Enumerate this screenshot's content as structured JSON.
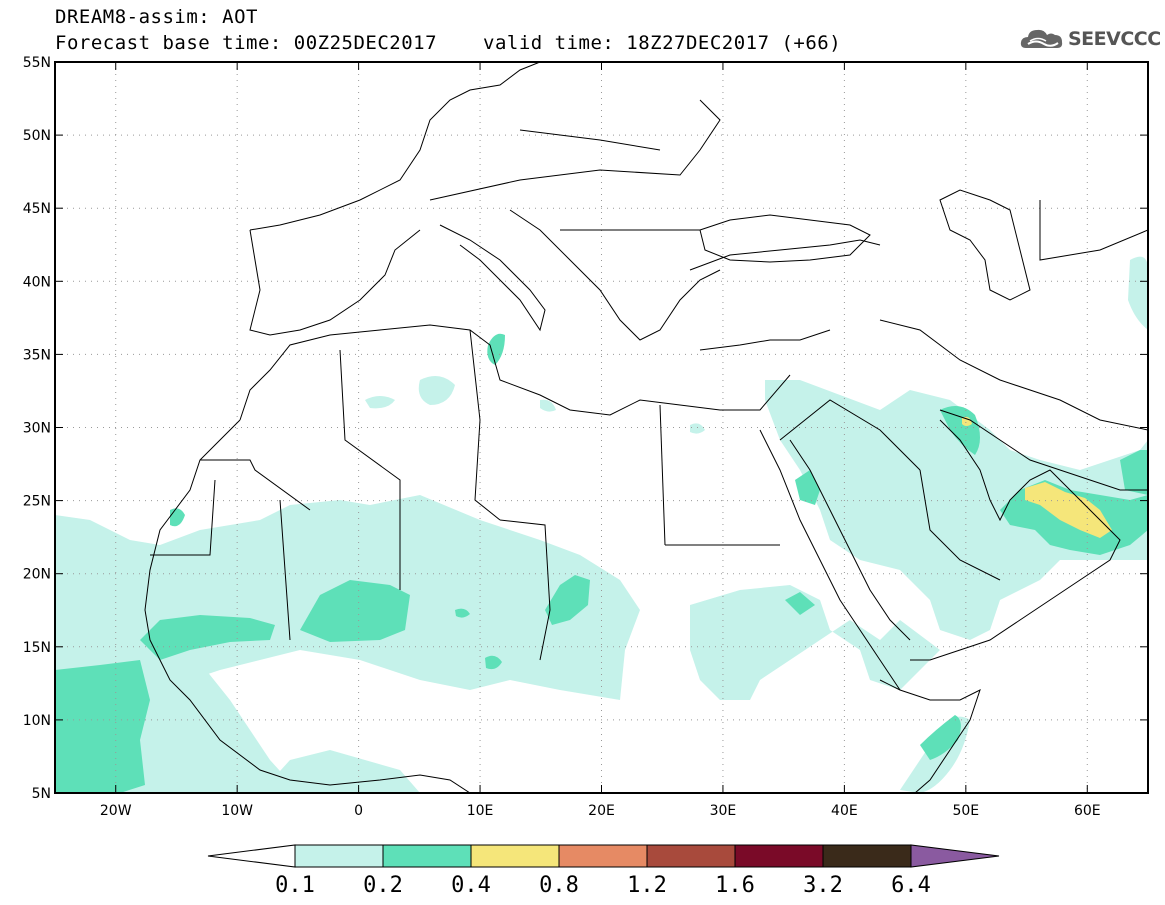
{
  "header": {
    "title": "DREAM8-assim: AOT",
    "base_time": "Forecast base time: 00Z25DEC2017",
    "valid_time": "valid time: 18Z27DEC2017 (+66)"
  },
  "logo": {
    "text": "SEEVCCC",
    "icon": "cloud-logo-icon"
  },
  "map": {
    "lon_range": [
      -25,
      65
    ],
    "lat_range": [
      5,
      55
    ],
    "lat_labels": [
      "55N",
      "50N",
      "45N",
      "40N",
      "35N",
      "30N",
      "25N",
      "20N",
      "15N",
      "10N",
      "5N"
    ],
    "lat_values": [
      55,
      50,
      45,
      40,
      35,
      30,
      25,
      20,
      15,
      10,
      5
    ],
    "lon_labels": [
      "20W",
      "10W",
      "0",
      "10E",
      "20E",
      "30E",
      "40E",
      "50E",
      "60E"
    ],
    "lon_values": [
      -20,
      -10,
      0,
      10,
      20,
      30,
      40,
      50,
      60
    ],
    "grid": true
  },
  "colorbar": {
    "labels": [
      "0.1",
      "0.2",
      "0.4",
      "0.8",
      "1.2",
      "1.6",
      "3.2",
      "6.4"
    ],
    "colors": [
      "#c5f2ea",
      "#5ee0b8",
      "#f5e67a",
      "#e68a64",
      "#a84a3c",
      "#7a0a28",
      "#3a2a1a",
      "#8a5aa0"
    ],
    "under_color": "#ffffff"
  },
  "colors": {
    "level1": "#c5f2ea",
    "level2": "#5ee0b8",
    "level3": "#f5e67a",
    "border": "#000000"
  }
}
